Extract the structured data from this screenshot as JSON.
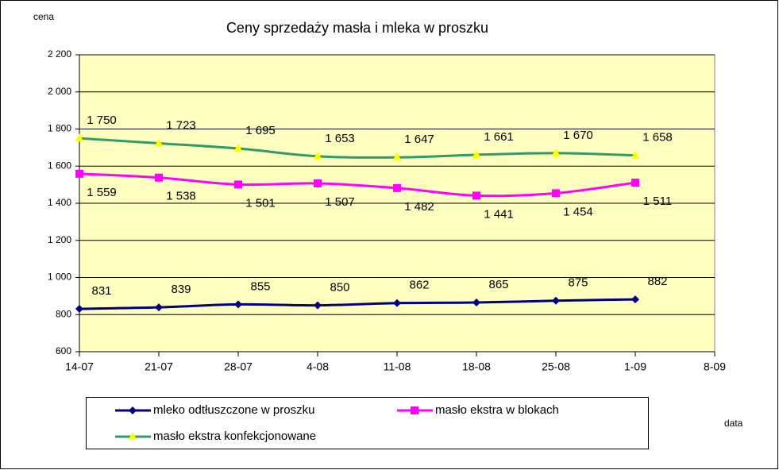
{
  "chart_data": {
    "type": "line",
    "title": "Ceny sprzedaży masła i mleka w proszku",
    "y_label": "cena",
    "x_label": "data",
    "categories": [
      "14-07",
      "21-07",
      "28-07",
      "4-08",
      "11-08",
      "18-08",
      "25-08",
      "1-09",
      "8-09"
    ],
    "series": [
      {
        "name": "mleko odtłuszczone w proszku",
        "color": "#000080",
        "marker": "diamond",
        "values": [
          831,
          839,
          855,
          850,
          862,
          865,
          875,
          882,
          null
        ]
      },
      {
        "name": "masło ekstra w blokach",
        "color": "#ff00ff",
        "marker": "square",
        "values": [
          1559,
          1538,
          1501,
          1507,
          1482,
          1441,
          1454,
          1511,
          null
        ],
        "value_labels": [
          "1 559",
          "1 538",
          "1 501",
          "1 507",
          "1 482",
          "1 441",
          "1 454",
          "1 511",
          null
        ]
      },
      {
        "name": "masło ekstra konfekcjonowane",
        "color": "#339966",
        "marker": "triangle",
        "marker_color": "#ffff00",
        "values": [
          1750,
          1723,
          1695,
          1653,
          1647,
          1661,
          1670,
          1658,
          null
        ],
        "value_labels": [
          "1 750",
          "1 723",
          "1 695",
          "1 653",
          "1 647",
          "1 661",
          "1 670",
          "1 658",
          null
        ]
      }
    ],
    "ylim": [
      600,
      2200
    ],
    "yticks": [
      600,
      800,
      {
        "value": 1000,
        "label": "1 000"
      },
      {
        "value": 1200,
        "label": "1 200"
      },
      {
        "value": 1400,
        "label": "1 400"
      },
      {
        "value": 1600,
        "label": "1 600"
      },
      {
        "value": 1800,
        "label": "1 800"
      },
      {
        "value": 2000,
        "label": "2 000"
      },
      {
        "value": 2200,
        "label": "2 200"
      }
    ],
    "grid": true,
    "legend": "bottom",
    "plot_background": "#ffffc0"
  }
}
